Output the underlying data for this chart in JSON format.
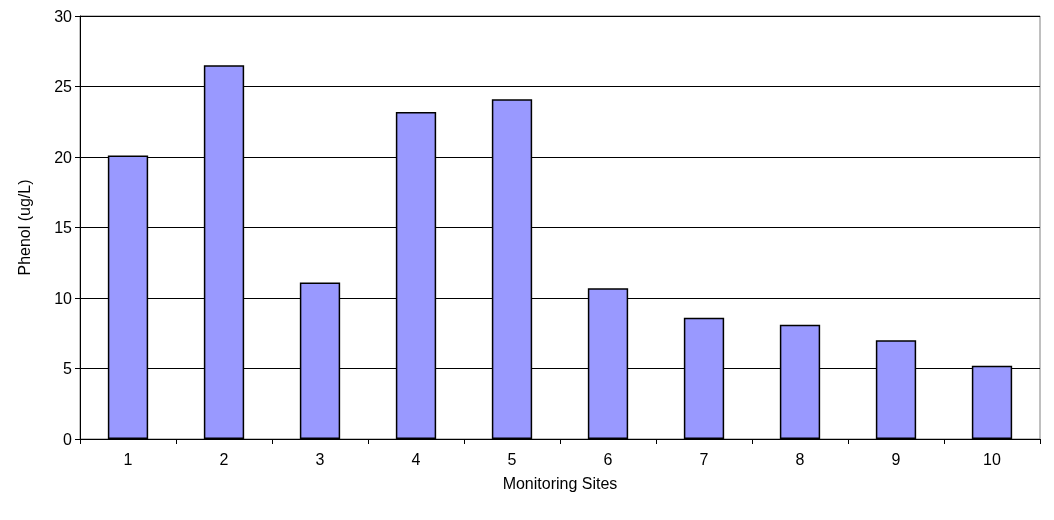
{
  "chart_data": {
    "type": "bar",
    "xlabel": "Monitoring Sites",
    "ylabel": "Phenol (ug/L)",
    "categories": [
      "1",
      "2",
      "3",
      "4",
      "5",
      "6",
      "7",
      "8",
      "9",
      "10"
    ],
    "values": [
      20.1,
      26.5,
      11.1,
      23.2,
      24.1,
      10.7,
      8.6,
      8.1,
      7.0,
      5.2
    ],
    "color": "#9999ff",
    "ylim": [
      0,
      30
    ],
    "yticks": [
      0,
      5,
      10,
      15,
      20,
      25,
      30
    ],
    "grid": "y"
  }
}
